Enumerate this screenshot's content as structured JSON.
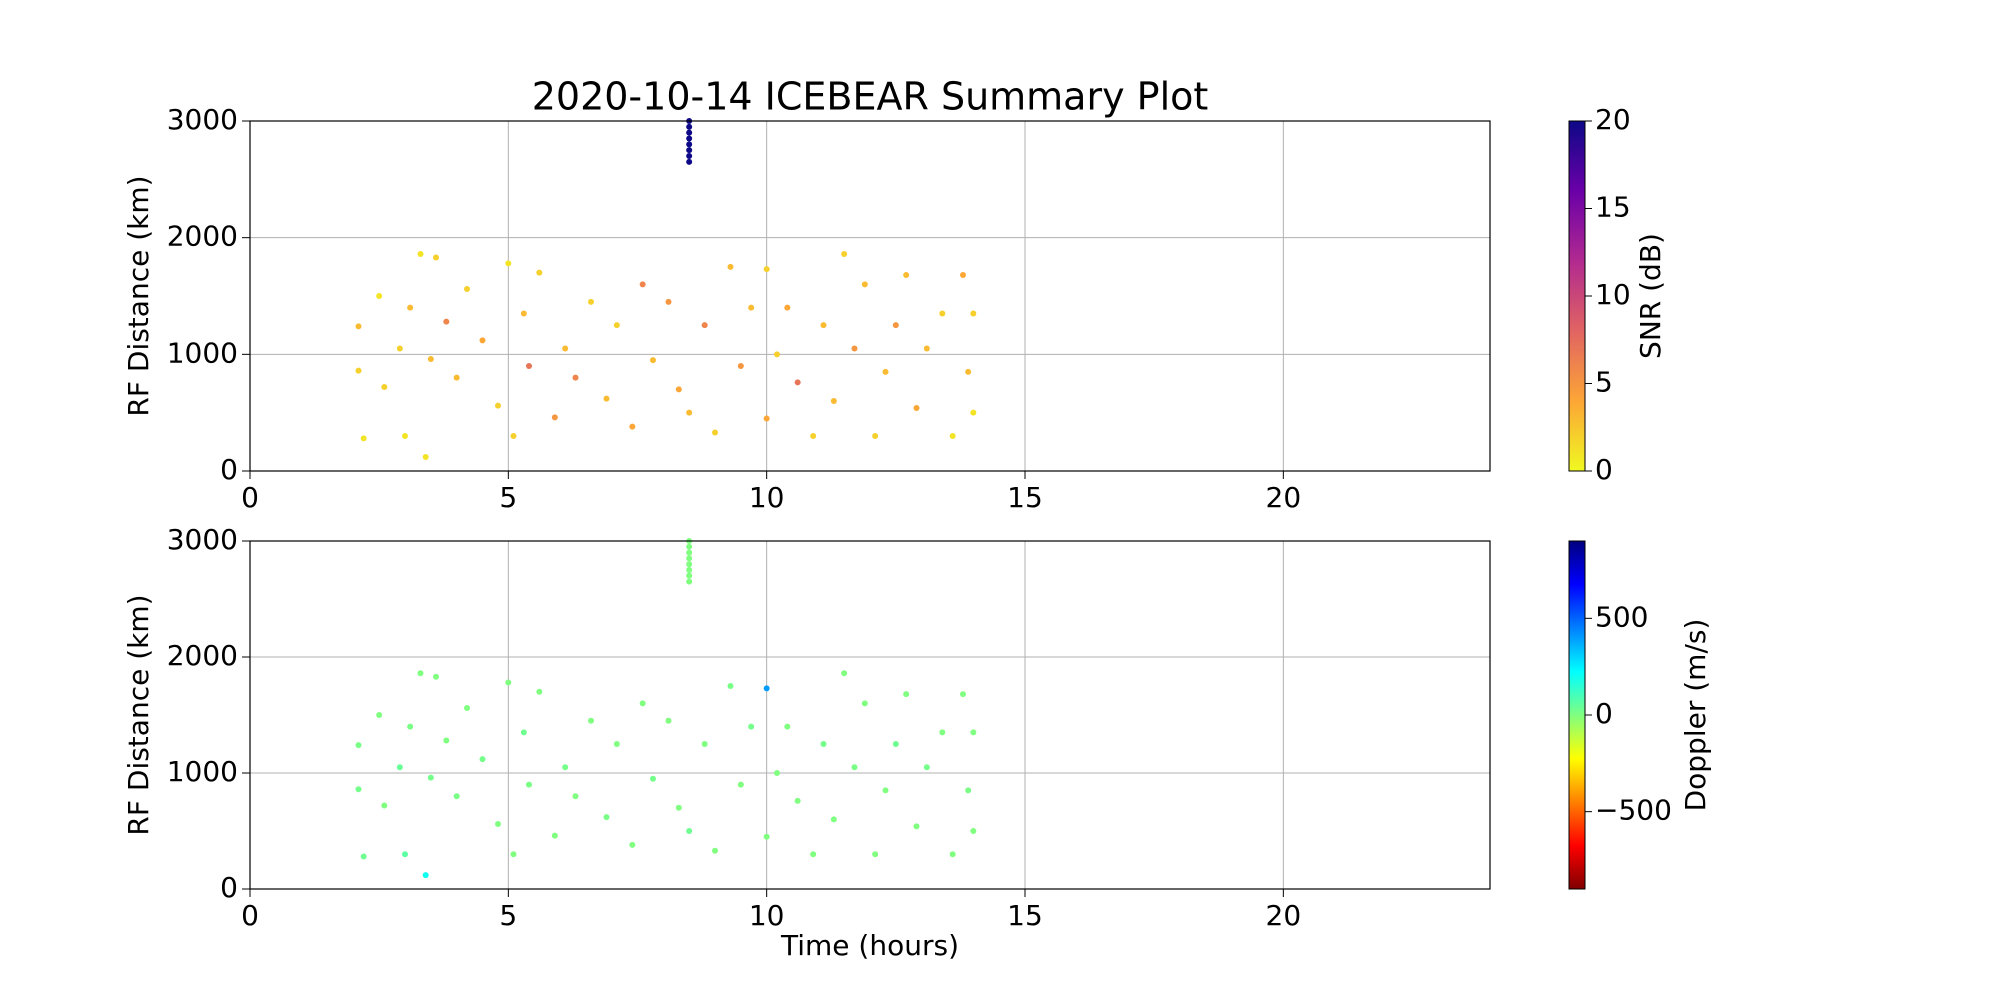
{
  "chart_data": [
    {
      "type": "scatter",
      "title": "2020-10-14 ICEBEAR Summary Plot",
      "ylabel": "RF Distance (km)",
      "colorbar_label": "SNR (dB)",
      "xlim": [
        0,
        24
      ],
      "xticks": [
        0,
        5,
        10,
        15,
        20
      ],
      "ylim": [
        0,
        3000
      ],
      "yticks": [
        0,
        1000,
        2000,
        3000
      ],
      "grid": true,
      "clim": [
        0,
        20
      ],
      "cticks": [
        0,
        5,
        10,
        15,
        20
      ],
      "colormap": [
        "#f0f921",
        "#fca636",
        "#e16462",
        "#b12a90",
        "#6a00a8",
        "#0d0887"
      ],
      "x": [
        2.1,
        2.1,
        2.2,
        2.5,
        2.6,
        2.9,
        3.0,
        3.1,
        3.3,
        3.4,
        3.5,
        3.6,
        3.8,
        4.0,
        4.2,
        4.5,
        4.8,
        5.0,
        5.1,
        5.3,
        5.4,
        5.6,
        5.9,
        6.1,
        6.3,
        6.6,
        6.9,
        7.1,
        7.4,
        7.6,
        7.8,
        8.1,
        8.3,
        8.5,
        8.8,
        9.0,
        9.3,
        9.5,
        9.7,
        10.0,
        10.0,
        10.2,
        10.4,
        10.6,
        10.9,
        11.1,
        11.3,
        11.5,
        11.7,
        11.9,
        12.1,
        12.3,
        12.5,
        12.7,
        12.9,
        13.1,
        13.4,
        13.6,
        13.8,
        13.9,
        14.0,
        14.0,
        8.5,
        8.5,
        8.5,
        8.5,
        8.5,
        8.5,
        8.5,
        8.5
      ],
      "values": [
        1240,
        860,
        280,
        1500,
        720,
        1050,
        300,
        1400,
        1860,
        120,
        960,
        1830,
        1280,
        800,
        1560,
        1120,
        560,
        1780,
        300,
        1350,
        900,
        1700,
        460,
        1050,
        800,
        1450,
        620,
        1250,
        380,
        1600,
        950,
        1450,
        700,
        500,
        1250,
        330,
        1750,
        900,
        1400,
        450,
        1730,
        1000,
        1400,
        760,
        300,
        1250,
        600,
        1860,
        1050,
        1600,
        300,
        850,
        1250,
        1680,
        540,
        1050,
        1350,
        300,
        1680,
        850,
        1350,
        500,
        2650,
        2700,
        2750,
        2800,
        2850,
        2900,
        2950,
        3000
      ],
      "color_values": [
        3,
        2,
        1,
        1,
        2,
        2,
        1,
        3,
        1,
        1,
        3,
        2,
        6,
        3,
        2,
        4,
        2,
        1,
        2,
        3,
        7,
        2,
        5,
        3,
        6,
        2,
        3,
        2,
        4,
        6,
        3,
        5,
        4,
        3,
        6,
        2,
        3,
        5,
        3,
        4,
        2,
        2,
        4,
        7,
        2,
        3,
        3,
        2,
        5,
        3,
        2,
        3,
        5,
        3,
        4,
        3,
        2,
        1,
        4,
        3,
        2,
        1,
        20,
        20,
        20,
        20,
        20,
        20,
        20,
        20
      ]
    },
    {
      "type": "scatter",
      "ylabel": "RF Distance (km)",
      "xlabel": "Time (hours)",
      "colorbar_label": "Doppler (m/s)",
      "xlim": [
        0,
        24
      ],
      "xticks": [
        0,
        5,
        10,
        15,
        20
      ],
      "ylim": [
        0,
        3000
      ],
      "yticks": [
        0,
        1000,
        2000,
        3000
      ],
      "grid": true,
      "clim": [
        -900,
        900
      ],
      "cticks": [
        {
          "value": -500,
          "label": "−500"
        },
        0,
        500
      ],
      "colormap": [
        "#800000",
        "#ff0000",
        "#ff8000",
        "#ffff00",
        "#80ff80",
        "#00ffff",
        "#0080ff",
        "#0000ff",
        "#000080"
      ],
      "x": [
        2.1,
        2.1,
        2.2,
        2.5,
        2.6,
        2.9,
        3.0,
        3.1,
        3.3,
        3.4,
        3.5,
        3.6,
        3.8,
        4.0,
        4.2,
        4.5,
        4.8,
        5.0,
        5.1,
        5.3,
        5.4,
        5.6,
        5.9,
        6.1,
        6.3,
        6.6,
        6.9,
        7.1,
        7.4,
        7.6,
        7.8,
        8.1,
        8.3,
        8.5,
        8.8,
        9.0,
        9.3,
        9.5,
        9.7,
        10.0,
        10.0,
        10.2,
        10.4,
        10.6,
        10.9,
        11.1,
        11.3,
        11.5,
        11.7,
        11.9,
        12.1,
        12.3,
        12.5,
        12.7,
        12.9,
        13.1,
        13.4,
        13.6,
        13.8,
        13.9,
        14.0,
        14.0,
        8.5,
        8.5,
        8.5,
        8.5,
        8.5,
        8.5,
        8.5,
        8.5
      ],
      "values": [
        1240,
        860,
        280,
        1500,
        720,
        1050,
        300,
        1400,
        1860,
        120,
        960,
        1830,
        1280,
        800,
        1560,
        1120,
        560,
        1780,
        300,
        1350,
        900,
        1700,
        460,
        1050,
        800,
        1450,
        620,
        1250,
        380,
        1600,
        950,
        1450,
        700,
        500,
        1250,
        330,
        1750,
        900,
        1400,
        450,
        1730,
        1000,
        1400,
        760,
        300,
        1250,
        600,
        1860,
        1050,
        1600,
        300,
        850,
        1250,
        1680,
        540,
        1050,
        1350,
        300,
        1680,
        850,
        1350,
        500,
        2650,
        2700,
        2750,
        2800,
        2850,
        2900,
        2950,
        3000
      ],
      "color_values": [
        10,
        20,
        30,
        0,
        0,
        40,
        60,
        10,
        0,
        200,
        20,
        0,
        0,
        10,
        0,
        20,
        0,
        0,
        0,
        30,
        10,
        0,
        0,
        20,
        0,
        0,
        10,
        0,
        0,
        0,
        20,
        0,
        0,
        30,
        0,
        0,
        10,
        0,
        20,
        0,
        400,
        0,
        0,
        0,
        0,
        20,
        0,
        0,
        10,
        0,
        0,
        0,
        30,
        0,
        0,
        20,
        0,
        0,
        0,
        10,
        0,
        0,
        0,
        0,
        0,
        0,
        0,
        0,
        0,
        0
      ]
    }
  ]
}
